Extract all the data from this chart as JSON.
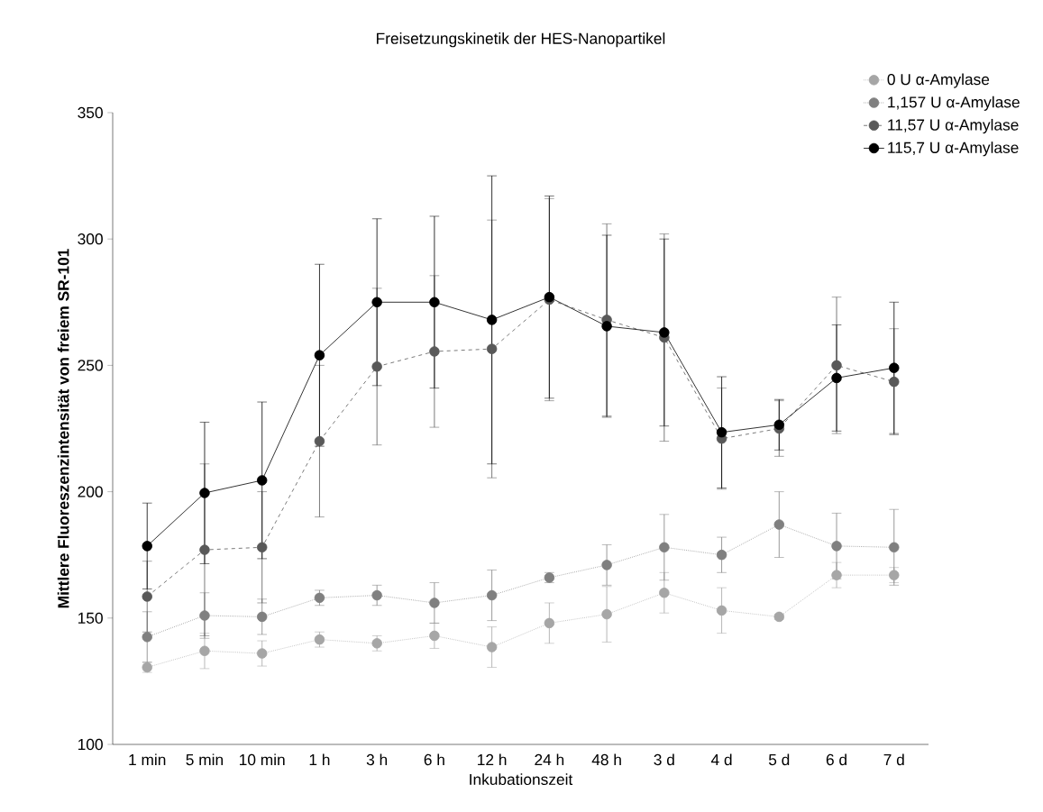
{
  "chart_data": {
    "type": "line",
    "title": "Freisetzungskinetik der HES-Nanopartikel",
    "xlabel": "Inkubationszeit",
    "ylabel": "Mittlere Fluoreszenzintensität von freiem SR-101",
    "categories": [
      "1 min",
      "5 min",
      "10 min",
      "1 h",
      "3 h",
      "6 h",
      "12 h",
      "24 h",
      "48 h",
      "3 d",
      "4 d",
      "5 d",
      "6 d",
      "7 d"
    ],
    "ylim": [
      100,
      350
    ],
    "yticks": [
      100,
      150,
      200,
      250,
      300,
      350
    ],
    "grid": false,
    "legend": "top right",
    "marker": "circle",
    "series": [
      {
        "name": "0 U α-Amylase",
        "color": "#a6a6a6",
        "line_style": "dotted",
        "values": [
          130.5,
          137,
          136,
          141.5,
          140,
          143,
          138.5,
          148,
          151.5,
          160,
          153,
          150.5,
          167,
          167
        ],
        "errors": [
          2,
          7,
          5,
          3,
          3,
          5,
          8,
          8,
          11,
          8,
          9,
          1,
          5,
          3
        ]
      },
      {
        "name": "1,157 U α-Amylase",
        "color": "#808080",
        "line_style": "dotted",
        "values": [
          142.5,
          151,
          150.5,
          158,
          159,
          156,
          159,
          166,
          171,
          178,
          175,
          187,
          178.5,
          178
        ],
        "errors": [
          10,
          9,
          7,
          3,
          4,
          8,
          10,
          2,
          8,
          13,
          7,
          13,
          13,
          15
        ]
      },
      {
        "name": "11,57 U α-Amylase",
        "color": "#595959",
        "line_style": "dashed",
        "values": [
          158.5,
          177,
          178,
          220,
          249.5,
          255.5,
          256.5,
          276,
          268,
          261,
          221,
          225,
          250,
          243.5
        ],
        "errors": [
          14,
          34,
          22,
          30,
          31,
          30,
          51,
          40,
          38,
          41,
          20,
          11,
          27,
          21
        ]
      },
      {
        "name": "115,7 U α-Amylase",
        "color": "#000000",
        "line_style": "solid",
        "values": [
          178.5,
          199.5,
          204.5,
          254,
          275,
          275,
          268,
          277,
          265.5,
          263,
          223.5,
          226.5,
          245,
          249
        ],
        "errors": [
          17,
          28,
          31,
          36,
          33,
          34,
          57,
          40,
          36,
          37,
          22,
          10,
          21,
          26
        ]
      }
    ]
  }
}
